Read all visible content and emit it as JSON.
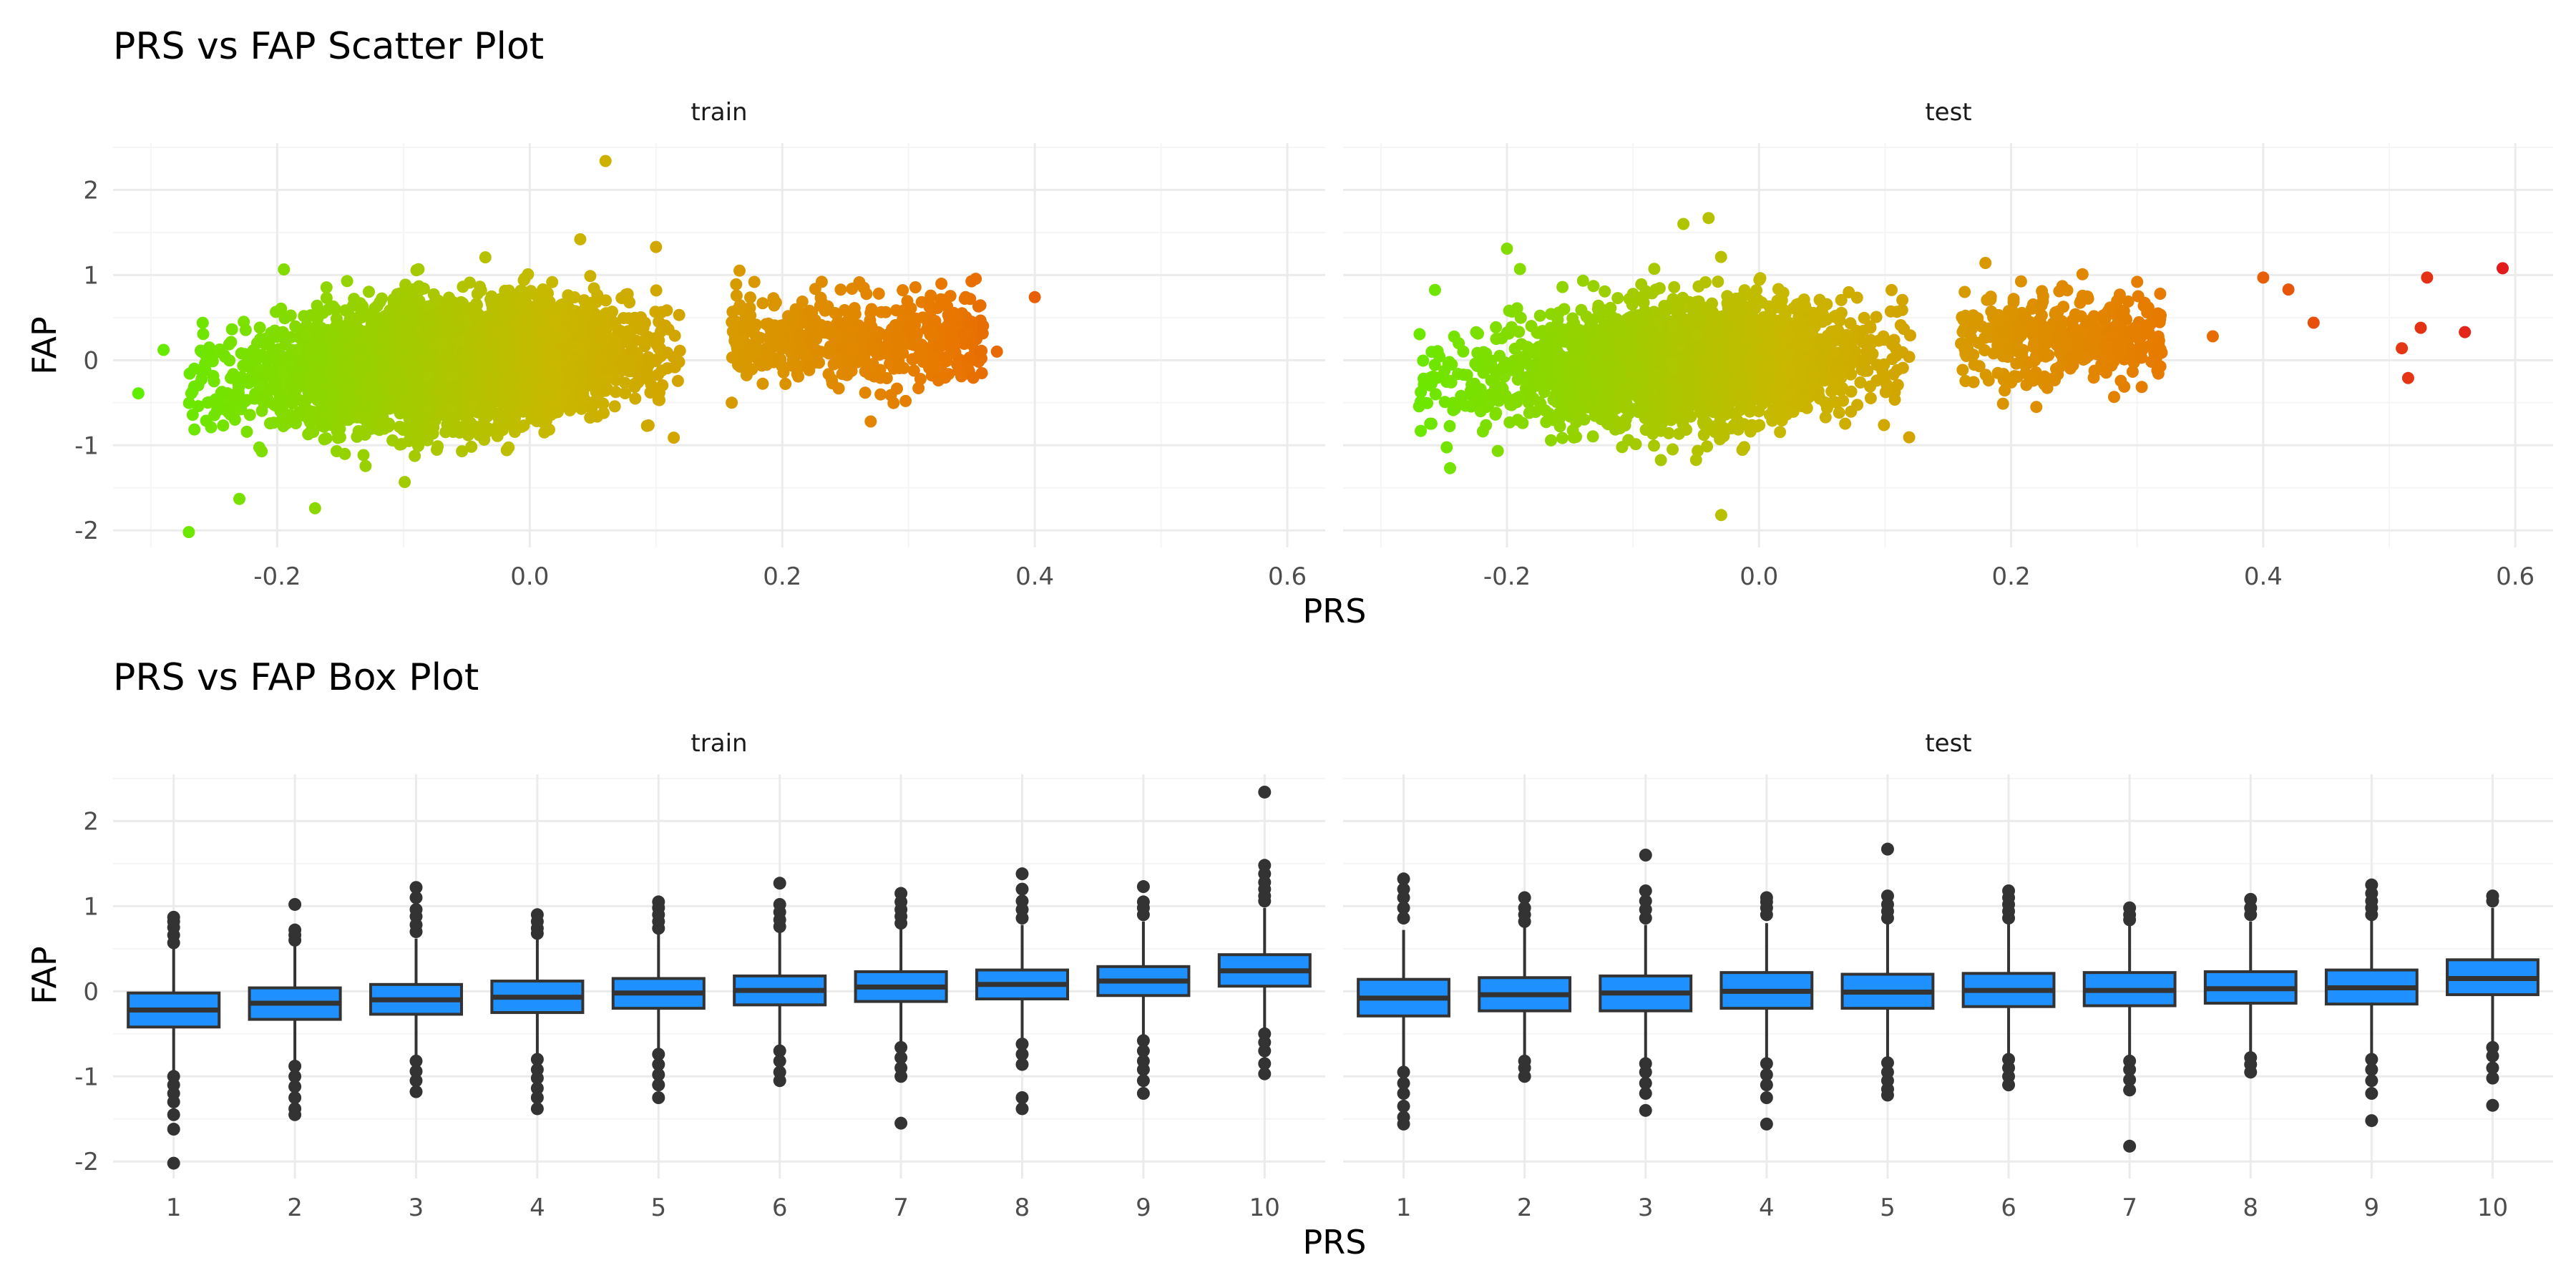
{
  "colors": {
    "grid_major": "#ebebeb",
    "grid_minor": "#f5f5f5",
    "point_low": "#5cf000",
    "point_mid": "#c9b800",
    "point_high": "#e31a1c",
    "box_fill": "#1e90ff",
    "box_line": "#333333",
    "outlier": "#333333"
  },
  "chart_data": [
    {
      "type": "scatter",
      "title": "PRS vs FAP Scatter Plot",
      "xlabel": "PRS",
      "ylabel": "FAP",
      "xlim": [
        -0.33,
        0.63
      ],
      "ylim": [
        -2.2,
        2.55
      ],
      "x_ticks": [
        -0.2,
        0.0,
        0.2,
        0.4,
        0.6
      ],
      "x_tick_labels": [
        "-0.2",
        "0.0",
        "0.2",
        "0.4",
        "0.6"
      ],
      "y_ticks": [
        -2,
        -1,
        0,
        1,
        2
      ],
      "y_tick_labels": [
        "-2",
        "-1",
        "0",
        "1",
        "2"
      ],
      "grid": true,
      "color_scale": "gradient by PRS: green (low) to orange to red (high)",
      "facets": [
        {
          "label": "train",
          "highlighted_points": [
            [
              -0.31,
              -0.39
            ],
            [
              -0.29,
              0.12
            ],
            [
              -0.27,
              -2.02
            ],
            [
              -0.26,
              -0.12
            ],
            [
              -0.23,
              -1.63
            ],
            [
              -0.17,
              -1.74
            ],
            [
              0.06,
              2.34
            ],
            [
              0.04,
              1.42
            ],
            [
              0.1,
              1.33
            ],
            [
              0.16,
              -0.5
            ],
            [
              0.27,
              -0.72
            ],
            [
              0.35,
              0.45
            ],
            [
              0.37,
              0.1
            ],
            [
              0.4,
              0.74
            ]
          ]
        },
        {
          "label": "test",
          "highlighted_points": [
            [
              -0.26,
              -0.28
            ],
            [
              -0.2,
              1.31
            ],
            [
              -0.06,
              1.6
            ],
            [
              -0.04,
              1.67
            ],
            [
              -0.03,
              -1.82
            ],
            [
              0.22,
              -0.55
            ],
            [
              0.3,
              0.92
            ],
            [
              0.36,
              0.28
            ],
            [
              0.4,
              0.97
            ],
            [
              0.42,
              0.83
            ],
            [
              0.44,
              0.44
            ],
            [
              0.51,
              0.14
            ],
            [
              0.515,
              -0.21
            ],
            [
              0.525,
              0.38
            ],
            [
              0.53,
              0.97
            ],
            [
              0.56,
              0.33
            ],
            [
              0.59,
              1.08
            ]
          ]
        }
      ]
    },
    {
      "type": "box",
      "title": "PRS vs FAP Box Plot",
      "xlabel": "PRS",
      "ylabel": "FAP",
      "ylim": [
        -2.2,
        2.55
      ],
      "categories": [
        "1",
        "2",
        "3",
        "4",
        "5",
        "6",
        "7",
        "8",
        "9",
        "10"
      ],
      "y_ticks": [
        -2,
        -1,
        0,
        1,
        2
      ],
      "y_tick_labels": [
        "-2",
        "-1",
        "0",
        "1",
        "2"
      ],
      "grid": true,
      "facets": [
        {
          "label": "train",
          "boxes": [
            {
              "q1": -0.42,
              "median": -0.22,
              "q3": -0.02,
              "lower": -0.95,
              "upper": 0.52,
              "outliers": [
                0.87,
                0.82,
                0.75,
                0.66,
                0.57,
                -1.0,
                -1.1,
                -1.2,
                -1.3,
                -1.45,
                -1.62,
                -2.02
              ]
            },
            {
              "q1": -0.33,
              "median": -0.14,
              "q3": 0.04,
              "lower": -0.85,
              "upper": 0.55,
              "outliers": [
                1.02,
                0.72,
                0.66,
                0.6,
                -0.88,
                -1.0,
                -1.12,
                -1.25,
                -1.38,
                -1.45
              ]
            },
            {
              "q1": -0.27,
              "median": -0.1,
              "q3": 0.08,
              "lower": -0.78,
              "upper": 0.62,
              "outliers": [
                1.22,
                1.1,
                0.96,
                0.88,
                0.78,
                0.7,
                -0.82,
                -0.94,
                -1.05,
                -1.18
              ]
            },
            {
              "q1": -0.25,
              "median": -0.07,
              "q3": 0.12,
              "lower": -0.75,
              "upper": 0.65,
              "outliers": [
                0.9,
                0.82,
                0.74,
                0.68,
                -0.8,
                -0.92,
                -1.02,
                -1.14,
                -1.25,
                -1.38
              ]
            },
            {
              "q1": -0.2,
              "median": -0.02,
              "q3": 0.15,
              "lower": -0.7,
              "upper": 0.68,
              "outliers": [
                1.05,
                0.98,
                0.9,
                0.82,
                0.74,
                -0.74,
                -0.86,
                -0.98,
                -1.1,
                -1.25
              ]
            },
            {
              "q1": -0.16,
              "median": 0.01,
              "q3": 0.18,
              "lower": -0.65,
              "upper": 0.7,
              "outliers": [
                1.27,
                1.02,
                0.93,
                0.84,
                0.76,
                -0.7,
                -0.82,
                -0.95,
                -1.05
              ]
            },
            {
              "q1": -0.12,
              "median": 0.05,
              "q3": 0.23,
              "lower": -0.6,
              "upper": 0.75,
              "outliers": [
                1.15,
                1.05,
                0.96,
                0.88,
                0.8,
                -0.66,
                -0.78,
                -0.9,
                -1.0,
                -1.55
              ]
            },
            {
              "q1": -0.09,
              "median": 0.08,
              "q3": 0.25,
              "lower": -0.56,
              "upper": 0.78,
              "outliers": [
                1.38,
                1.2,
                1.06,
                0.96,
                0.86,
                -0.62,
                -0.74,
                -0.86,
                -1.25,
                -1.38
              ]
            },
            {
              "q1": -0.05,
              "median": 0.12,
              "q3": 0.29,
              "lower": -0.52,
              "upper": 0.82,
              "outliers": [
                1.23,
                1.05,
                0.98,
                0.9,
                -0.58,
                -0.7,
                -0.82,
                -0.92,
                -1.05,
                -1.2
              ]
            },
            {
              "q1": 0.06,
              "median": 0.24,
              "q3": 0.43,
              "lower": -0.44,
              "upper": 0.98,
              "outliers": [
                2.34,
                1.48,
                1.38,
                1.28,
                1.2,
                1.12,
                1.06,
                -0.5,
                -0.6,
                -0.7,
                -0.85,
                -0.97
              ]
            }
          ]
        },
        {
          "label": "test",
          "boxes": [
            {
              "q1": -0.29,
              "median": -0.08,
              "q3": 0.14,
              "lower": -0.88,
              "upper": 0.72,
              "outliers": [
                1.32,
                1.2,
                1.1,
                0.98,
                0.86,
                -0.95,
                -1.08,
                -1.2,
                -1.35,
                -1.48,
                -1.56
              ]
            },
            {
              "q1": -0.23,
              "median": -0.04,
              "q3": 0.16,
              "lower": -0.8,
              "upper": 0.75,
              "outliers": [
                1.1,
                0.98,
                0.9,
                0.82,
                -0.82,
                -0.9,
                -1.0
              ]
            },
            {
              "q1": -0.23,
              "median": -0.02,
              "q3": 0.18,
              "lower": -0.82,
              "upper": 0.78,
              "outliers": [
                1.6,
                1.18,
                1.06,
                0.96,
                0.86,
                -0.85,
                -0.95,
                -1.08,
                -1.2,
                -1.4
              ]
            },
            {
              "q1": -0.2,
              "median": 0.0,
              "q3": 0.22,
              "lower": -0.82,
              "upper": 0.8,
              "outliers": [
                1.1,
                1.05,
                0.98,
                0.9,
                -0.85,
                -0.98,
                -1.1,
                -1.25,
                -1.56
              ]
            },
            {
              "q1": -0.2,
              "median": -0.01,
              "q3": 0.2,
              "lower": -0.8,
              "upper": 0.8,
              "outliers": [
                1.67,
                1.12,
                1.02,
                0.94,
                0.86,
                -0.84,
                -0.95,
                -1.05,
                -1.15,
                -1.22
              ]
            },
            {
              "q1": -0.18,
              "median": 0.01,
              "q3": 0.21,
              "lower": -0.78,
              "upper": 0.82,
              "outliers": [
                1.18,
                1.1,
                1.02,
                0.94,
                0.86,
                -0.8,
                -0.9,
                -1.0,
                -1.1
              ]
            },
            {
              "q1": -0.17,
              "median": 0.01,
              "q3": 0.22,
              "lower": -0.78,
              "upper": 0.8,
              "outliers": [
                0.98,
                0.9,
                0.84,
                -0.82,
                -0.92,
                -1.04,
                -1.16,
                -1.82
              ]
            },
            {
              "q1": -0.14,
              "median": 0.03,
              "q3": 0.23,
              "lower": -0.75,
              "upper": 0.82,
              "outliers": [
                1.08,
                0.98,
                0.9,
                -0.78,
                -0.86,
                -0.95
              ]
            },
            {
              "q1": -0.15,
              "median": 0.04,
              "q3": 0.25,
              "lower": -0.75,
              "upper": 0.84,
              "outliers": [
                1.25,
                1.15,
                1.06,
                0.98,
                0.9,
                -0.8,
                -0.92,
                -1.05,
                -1.2,
                -1.52
              ]
            },
            {
              "q1": -0.04,
              "median": 0.15,
              "q3": 0.37,
              "lower": -0.62,
              "upper": 0.98,
              "outliers": [
                1.12,
                1.06,
                -0.66,
                -0.76,
                -0.9,
                -1.02,
                -1.34
              ]
            }
          ]
        }
      ]
    }
  ]
}
